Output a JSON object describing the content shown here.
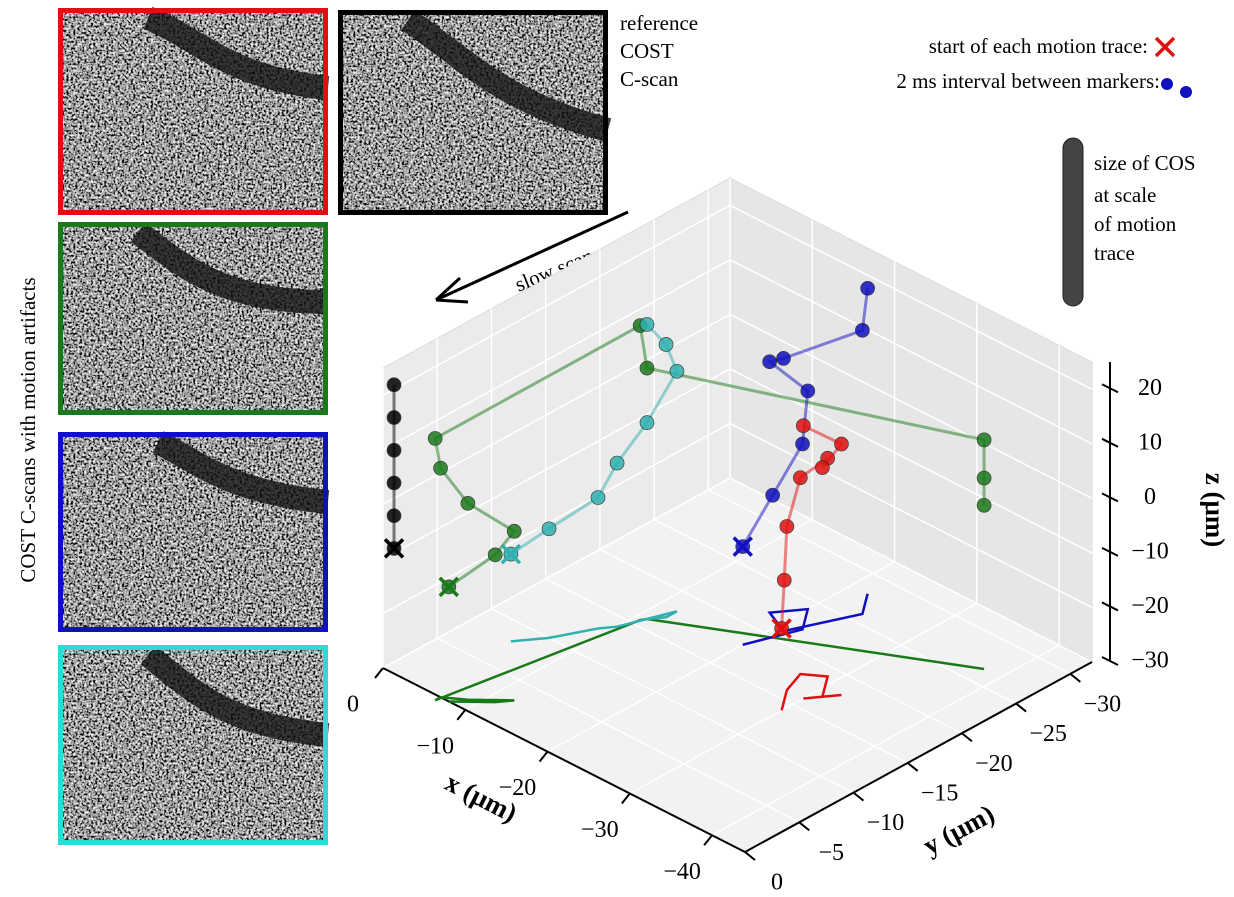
{
  "reference_label": [
    "reference",
    "COST",
    "C-scan"
  ],
  "side_label": "COST C-scans with motion artifacts",
  "arrow_label": "slow scan",
  "legend_start": "start of each motion trace:",
  "legend_interval": "2 ms interval between markers:",
  "size_label": [
    "size of COS",
    "at scale",
    "of motion",
    "trace"
  ],
  "chart_data": {
    "type": "scatter3d",
    "xlabel": "x (μm)",
    "ylabel": "y (μm)",
    "zlabel": "z (μm)",
    "xlim": [
      0,
      -44
    ],
    "ylim": [
      0,
      -32
    ],
    "zlim": [
      -30,
      25
    ],
    "xticks": [
      0,
      {
        "value": -10,
        "label": "−10"
      },
      {
        "value": -20,
        "label": "−20"
      },
      {
        "value": -30,
        "label": "−30"
      },
      {
        "value": -40,
        "label": "−40"
      }
    ],
    "yticks": [
      0,
      {
        "value": -5,
        "label": "−5"
      },
      {
        "value": -10,
        "label": "−10"
      },
      {
        "value": -15,
        "label": "−15"
      },
      {
        "value": -20,
        "label": "−20"
      },
      {
        "value": -25,
        "label": "−25"
      },
      {
        "value": -30,
        "label": "−30"
      }
    ],
    "zticks": [
      20,
      10,
      0,
      {
        "value": -10,
        "label": "−10"
      },
      {
        "value": -20,
        "label": "−20"
      },
      {
        "value": -30,
        "label": "−30"
      }
    ],
    "grid": true,
    "series": [
      {
        "color": "#1a7a1a",
        "x": [
          -8,
          -11,
          -12,
          -9,
          -7,
          -7,
          -10.7,
          -11,
          -38,
          -38,
          -38
        ],
        "y": [
          0,
          -2,
          -3,
          -1,
          0,
          0.5,
          -15.6,
          -16,
          -26.6,
          -26.6,
          -26.6
        ],
        "z": [
          -9,
          -3,
          1,
          6,
          12,
          18,
          24,
          16,
          12,
          5,
          0
        ]
      },
      {
        "color": "#30b0b0",
        "x": [
          -5,
          -7,
          -9,
          -10,
          -11,
          -12,
          -12,
          -11
        ],
        "y": [
          -8,
          -10,
          -13,
          -14,
          -16,
          -18,
          -17,
          -16
        ],
        "z": [
          -14,
          -10,
          -6,
          0,
          6,
          14,
          20,
          24
        ]
      },
      {
        "color": "#1010c0",
        "x": [
          -20,
          -21,
          -22,
          -20,
          -18,
          -21,
          -24,
          -22
        ],
        "y": [
          -18,
          -20,
          -22,
          -24,
          -22,
          -21,
          -26,
          -28
        ],
        "z": [
          -12,
          -4,
          4,
          10,
          16,
          20,
          22,
          26
        ]
      },
      {
        "color": "#e01010",
        "x": [
          -30,
          -29,
          -28,
          -27,
          -29,
          -31,
          -32,
          -30
        ],
        "y": [
          -14,
          -15,
          -16,
          -18,
          -19,
          -17,
          -18,
          -16
        ],
        "z": [
          -15,
          -8,
          0,
          6,
          10,
          12,
          16,
          20
        ]
      },
      {
        "color": "#000000",
        "x": [
          -2,
          -2,
          -2,
          -2,
          -2,
          -2
        ],
        "y": [
          0.5,
          0.5,
          0.5,
          0.5,
          0.5,
          0.5
        ],
        "z": [
          -6,
          0,
          6,
          12,
          18,
          24
        ]
      }
    ]
  }
}
